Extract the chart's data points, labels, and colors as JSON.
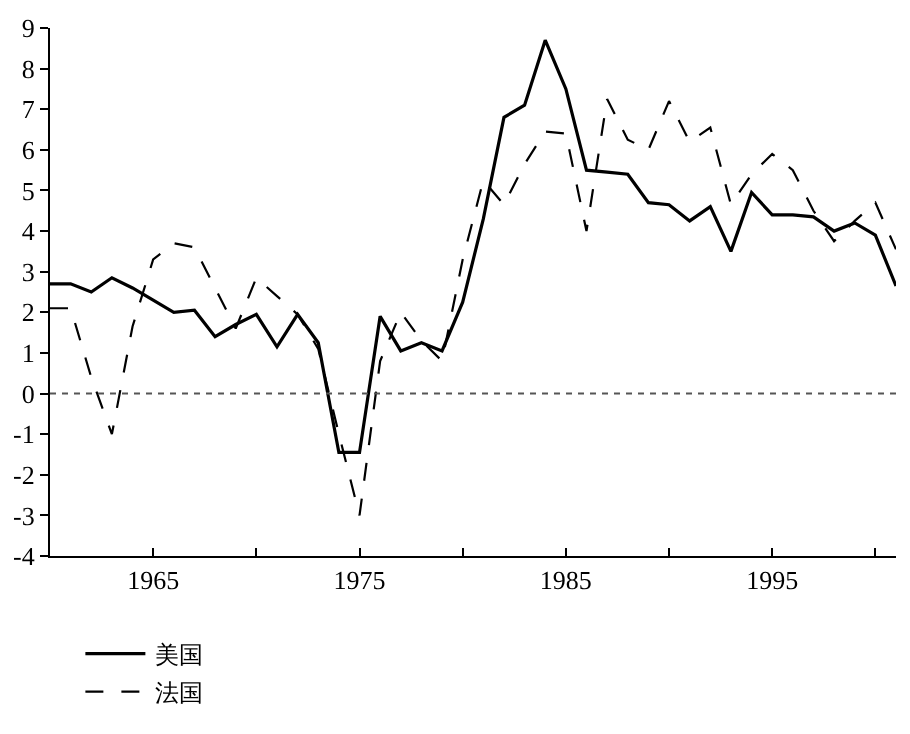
{
  "chart_data": {
    "type": "line",
    "x": [
      1960,
      1961,
      1962,
      1963,
      1964,
      1965,
      1966,
      1967,
      1968,
      1969,
      1970,
      1971,
      1972,
      1973,
      1974,
      1975,
      1976,
      1977,
      1978,
      1979,
      1980,
      1981,
      1982,
      1983,
      1984,
      1985,
      1986,
      1987,
      1988,
      1989,
      1990,
      1991,
      1992,
      1993,
      1994,
      1995,
      1996,
      1997,
      1998,
      1999,
      2000,
      2001
    ],
    "series": [
      {
        "name": "美国",
        "color": "#000000",
        "line_style": "solid",
        "values": [
          2.7,
          2.7,
          2.5,
          2.85,
          2.6,
          2.3,
          2.0,
          2.05,
          1.4,
          1.7,
          1.95,
          1.15,
          1.95,
          1.25,
          -1.45,
          -1.45,
          1.9,
          1.05,
          1.25,
          1.05,
          2.25,
          4.3,
          6.8,
          7.1,
          8.7,
          7.5,
          5.5,
          5.45,
          5.4,
          4.7,
          4.65,
          4.25,
          4.6,
          3.5,
          4.95,
          4.4,
          4.4,
          4.35,
          4.0,
          4.2,
          3.9,
          2.65
        ]
      },
      {
        "name": "法国",
        "color": "#000000",
        "line_style": "dashed",
        "values": [
          2.1,
          2.1,
          0.4,
          -1.0,
          1.65,
          3.3,
          3.7,
          3.6,
          2.6,
          1.6,
          2.85,
          2.4,
          1.95,
          1.1,
          -1.0,
          -3.0,
          0.8,
          2.0,
          1.3,
          0.8,
          3.3,
          5.25,
          4.65,
          5.65,
          6.45,
          6.4,
          4.0,
          7.25,
          6.25,
          6.0,
          7.2,
          6.2,
          6.55,
          4.65,
          5.4,
          5.9,
          5.5,
          4.5,
          3.75,
          4.25,
          4.7,
          3.55
        ]
      }
    ],
    "xlim": [
      1960,
      2001
    ],
    "xticks": [
      {
        "value": 1960,
        "label": null
      },
      1965,
      {
        "value": 1970,
        "label": null
      },
      1975,
      {
        "value": 1980,
        "label": null
      },
      1985,
      {
        "value": 1990,
        "label": null
      },
      1995,
      {
        "value": 2000,
        "label": null
      }
    ],
    "ylim": [
      -4,
      9
    ],
    "yticks": [
      -4,
      -3,
      -2,
      -1,
      0,
      1,
      2,
      3,
      4,
      5,
      6,
      7,
      8,
      9
    ],
    "ref_lines": [
      {
        "axis": "y",
        "value": 0,
        "color": "#555555",
        "line_style": "dotted"
      }
    ],
    "legend": "bottom",
    "marker": "none"
  }
}
